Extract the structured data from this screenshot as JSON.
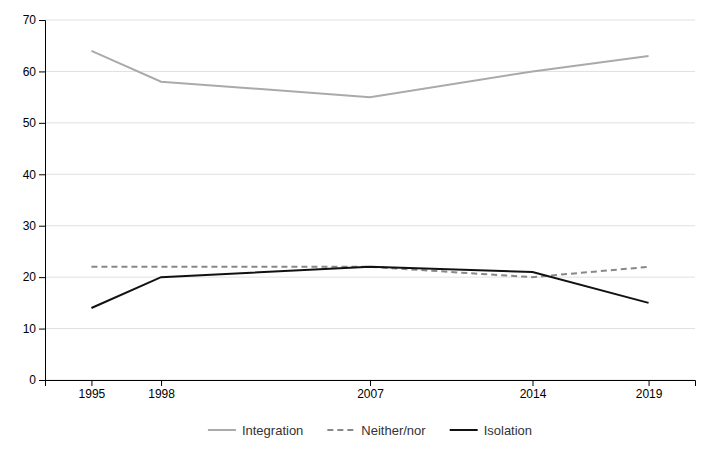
{
  "chart_data": {
    "type": "line",
    "x": [
      1995,
      1998,
      2007,
      2014,
      2019
    ],
    "xlim": [
      1993,
      2021
    ],
    "xticks": [
      1995,
      1998,
      2007,
      2014,
      2019
    ],
    "ylim": [
      0,
      70
    ],
    "yticks": [
      0,
      10,
      20,
      30,
      40,
      50,
      60,
      70
    ],
    "grid": true,
    "legend": "bottom",
    "series": [
      {
        "name": "Integration",
        "color": "#aaaaaa",
        "line_style": "solid",
        "values": [
          64,
          58,
          55,
          60,
          63
        ]
      },
      {
        "name": "Neither/nor",
        "color": "#888888",
        "line_style": "dashed",
        "values": [
          22,
          22,
          22,
          20,
          22
        ]
      },
      {
        "name": "Isolation",
        "color": "#111111",
        "line_style": "solid",
        "values": [
          14,
          20,
          22,
          21,
          15
        ]
      }
    ]
  }
}
